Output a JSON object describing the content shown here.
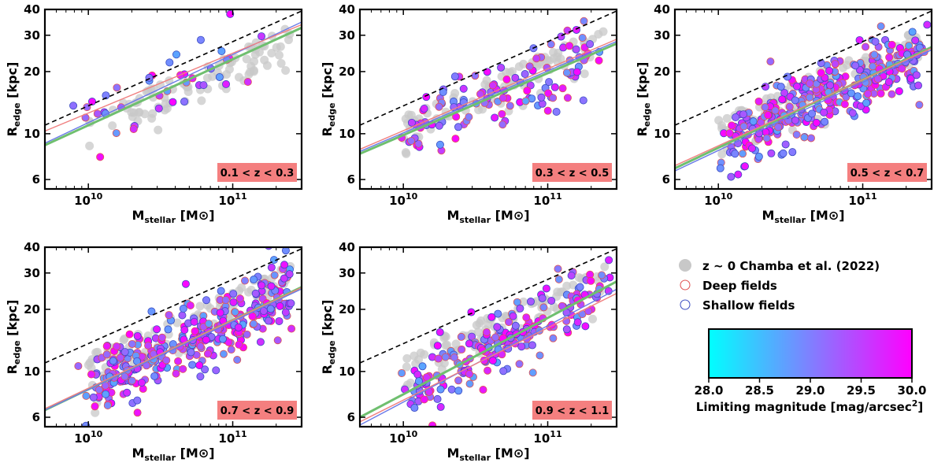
{
  "chart_data": {
    "type": "scatter",
    "x_scale": "log",
    "y_scale": "log",
    "xlim": [
      5000000000,
      300000000000
    ],
    "ylim": [
      5.4,
      40
    ],
    "xlabel": "M",
    "xlabel_sub": "stellar",
    "xlabel_unit": "[M⊙]",
    "ylabel": "R",
    "ylabel_sub": "edge",
    "ylabel_unit": "[kpc]",
    "x_ticks": [
      {
        "value": 10000000000,
        "base": "10",
        "exp": "10"
      },
      {
        "value": 100000000000,
        "base": "10",
        "exp": "11"
      }
    ],
    "y_ticks": [
      {
        "value": 6,
        "label": "6"
      },
      {
        "value": 10,
        "label": "10"
      },
      {
        "value": 20,
        "label": "20"
      },
      {
        "value": 30,
        "label": "30"
      },
      {
        "value": 40,
        "label": "40"
      }
    ],
    "reference_line": {
      "name": "z ~ 0 Chamba et al. (2022) fit",
      "style": "dashed",
      "color": "#000000",
      "y_at_xmin": 11.0,
      "slope": 0.311
    },
    "panels": [
      {
        "label": "0.1 < z < 0.3",
        "fit_deep": {
          "y_at_xmin": 10.3,
          "slope": 0.29
        },
        "fit_shallow": {
          "y_at_xmin": 9.0,
          "slope": 0.33
        },
        "fit_all": {
          "y_at_xmin": 8.8,
          "slope": 0.32
        },
        "n_points": 40
      },
      {
        "label": "0.3 < z < 0.5",
        "fit_deep": {
          "y_at_xmin": 8.4,
          "slope": 0.3
        },
        "fit_shallow": {
          "y_at_xmin": 8.2,
          "slope": 0.3
        },
        "fit_all": {
          "y_at_xmin": 8.0,
          "slope": 0.3
        },
        "n_points": 120
      },
      {
        "label": "0.5 < z < 0.7",
        "fit_deep": {
          "y_at_xmin": 7.0,
          "slope": 0.32
        },
        "fit_shallow": {
          "y_at_xmin": 6.6,
          "slope": 0.33
        },
        "fit_all": {
          "y_at_xmin": 6.8,
          "slope": 0.33
        },
        "n_points": 320
      },
      {
        "label": "0.7 < z < 0.9",
        "fit_deep": {
          "y_at_xmin": 6.6,
          "slope": 0.33
        },
        "fit_shallow": {
          "y_at_xmin": 6.5,
          "slope": 0.33
        },
        "fit_all": {
          "y_at_xmin": 6.5,
          "slope": 0.335
        },
        "n_points": 330
      },
      {
        "label": "0.9 < z < 1.1",
        "fit_deep": {
          "y_at_xmin": 5.7,
          "slope": 0.35
        },
        "fit_shallow": {
          "y_at_xmin": 5.5,
          "slope": 0.37
        },
        "fit_all": {
          "y_at_xmin": 6.0,
          "slope": 0.37
        },
        "n_points": 200
      }
    ],
    "reference_sample": {
      "name": "z ~ 0 Chamba et al. (2022)",
      "color": "#c8c8c8",
      "n_points": 90
    },
    "colors": {
      "deep_fit": "#f08080",
      "shallow_fit": "#6a7ae8",
      "all_fit": "#6fbf6f",
      "label_box": "#f47f7f"
    },
    "legend": [
      {
        "label": "z ~ 0 Chamba et al. (2022)",
        "marker": "filled-circle",
        "color": "#c8c8c8"
      },
      {
        "label": "Deep fields",
        "marker": "open-circle",
        "color": "#e05050"
      },
      {
        "label": "Shallow fields",
        "marker": "open-circle",
        "color": "#3b4cc0"
      }
    ],
    "colorbar": {
      "label": "Limiting magnitude [mag/arcsec",
      "label_sup": "2",
      "label_end": "]",
      "range": [
        28.0,
        30.0
      ],
      "ticks": [
        "28.0",
        "28.5",
        "29.0",
        "29.5",
        "30.0"
      ],
      "colormap": [
        "#00ffff",
        "#ff00ff"
      ]
    }
  }
}
